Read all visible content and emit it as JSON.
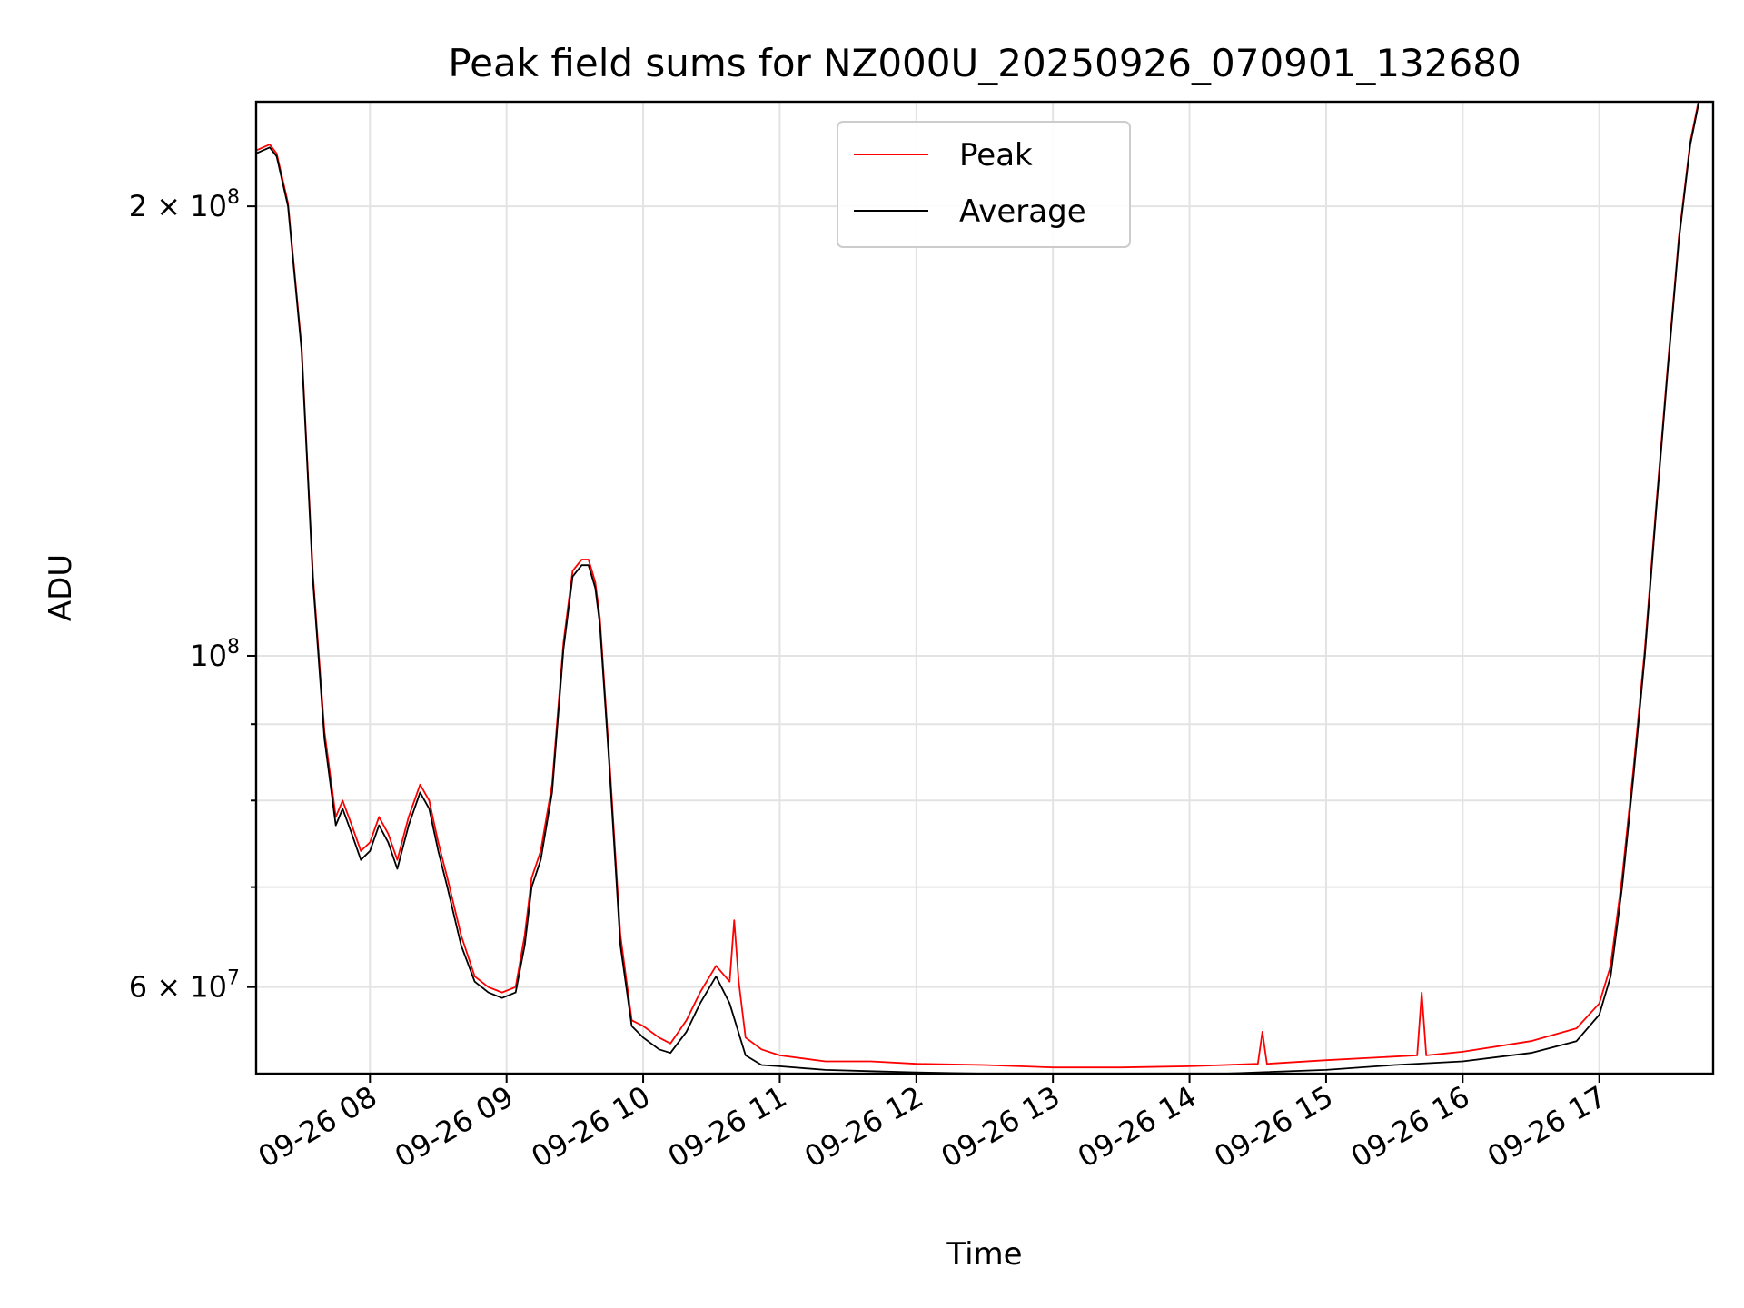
{
  "chart_data": {
    "type": "line",
    "title": "Peak field sums for NZ000U_20250926_070901_132680",
    "xlabel": "Time",
    "ylabel": "ADU",
    "yscale": "log",
    "grid": true,
    "legend_position": "top-center",
    "xlim": [
      "2025-09-26 07:10",
      "2025-09-26 17:50"
    ],
    "ylim": [
      52500000,
      235000000
    ],
    "x_ticks": [
      {
        "value": "2025-09-26 08:00",
        "label": "09-26 08"
      },
      {
        "value": "2025-09-26 09:00",
        "label": "09-26 09"
      },
      {
        "value": "2025-09-26 10:00",
        "label": "09-26 10"
      },
      {
        "value": "2025-09-26 11:00",
        "label": "09-26 11"
      },
      {
        "value": "2025-09-26 12:00",
        "label": "09-26 12"
      },
      {
        "value": "2025-09-26 13:00",
        "label": "09-26 13"
      },
      {
        "value": "2025-09-26 14:00",
        "label": "09-26 14"
      },
      {
        "value": "2025-09-26 15:00",
        "label": "09-26 15"
      },
      {
        "value": "2025-09-26 16:00",
        "label": "09-26 16"
      },
      {
        "value": "2025-09-26 17:00",
        "label": "09-26 17"
      }
    ],
    "y_major_ticks": [
      {
        "value": 60000000,
        "mantissa": "6",
        "base": "10",
        "exp": "7"
      },
      {
        "value": 100000000,
        "mantissa": "",
        "base": "10",
        "exp": "8"
      },
      {
        "value": 200000000,
        "mantissa": "2",
        "base": "10",
        "exp": "8"
      }
    ],
    "y_minor_ticks": [
      70000000,
      80000000,
      90000000
    ],
    "series": [
      {
        "name": "Average",
        "color": "#000000",
        "x": [
          "2025-09-26 07:10",
          "2025-09-26 07:13",
          "2025-09-26 07:16",
          "2025-09-26 07:19",
          "2025-09-26 07:24",
          "2025-09-26 07:30",
          "2025-09-26 07:35",
          "2025-09-26 07:40",
          "2025-09-26 07:45",
          "2025-09-26 07:48",
          "2025-09-26 07:52",
          "2025-09-26 07:56",
          "2025-09-26 08:00",
          "2025-09-26 08:04",
          "2025-09-26 08:08",
          "2025-09-26 08:12",
          "2025-09-26 08:17",
          "2025-09-26 08:22",
          "2025-09-26 08:26",
          "2025-09-26 08:30",
          "2025-09-26 08:34",
          "2025-09-26 08:40",
          "2025-09-26 08:46",
          "2025-09-26 08:52",
          "2025-09-26 08:58",
          "2025-09-26 09:04",
          "2025-09-26 09:08",
          "2025-09-26 09:11",
          "2025-09-26 09:15",
          "2025-09-26 09:20",
          "2025-09-26 09:25",
          "2025-09-26 09:29",
          "2025-09-26 09:33",
          "2025-09-26 09:36",
          "2025-09-26 09:39",
          "2025-09-26 09:41",
          "2025-09-26 09:45",
          "2025-09-26 09:50",
          "2025-09-26 09:55",
          "2025-09-26 10:00",
          "2025-09-26 10:07",
          "2025-09-26 10:12",
          "2025-09-26 10:19",
          "2025-09-26 10:25",
          "2025-09-26 10:32",
          "2025-09-26 10:38",
          "2025-09-26 10:45",
          "2025-09-26 10:52",
          "2025-09-26 11:00",
          "2025-09-26 11:20",
          "2025-09-26 11:40",
          "2025-09-26 12:00",
          "2025-09-26 12:30",
          "2025-09-26 13:00",
          "2025-09-26 13:30",
          "2025-09-26 14:00",
          "2025-09-26 14:30",
          "2025-09-26 15:00",
          "2025-09-26 15:30",
          "2025-09-26 16:00",
          "2025-09-26 16:30",
          "2025-09-26 16:50",
          "2025-09-26 17:00",
          "2025-09-26 17:05",
          "2025-09-26 17:10",
          "2025-09-26 17:15",
          "2025-09-26 17:20",
          "2025-09-26 17:25",
          "2025-09-26 17:30",
          "2025-09-26 17:35",
          "2025-09-26 17:40",
          "2025-09-26 17:45"
        ],
        "values": [
          217000000,
          218000000,
          219000000,
          216000000,
          200000000,
          160000000,
          112000000,
          88000000,
          77000000,
          79000000,
          76000000,
          73000000,
          74000000,
          77000000,
          75000000,
          72000000,
          77000000,
          81000000,
          79000000,
          74000000,
          70000000,
          64000000,
          60500000,
          59500000,
          59000000,
          59500000,
          64000000,
          70000000,
          73000000,
          81000000,
          101000000,
          113000000,
          115000000,
          115000000,
          111000000,
          105000000,
          85000000,
          64000000,
          56500000,
          55500000,
          54500000,
          54200000,
          56000000,
          58500000,
          61000000,
          58500000,
          54000000,
          53200000,
          53100000,
          52800000,
          52700000,
          52600000,
          52500000,
          52300000,
          52300000,
          52400000,
          52600000,
          52800000,
          53200000,
          53500000,
          54200000,
          55200000,
          57500000,
          61000000,
          70000000,
          83000000,
          100000000,
          125000000,
          155000000,
          190000000,
          220000000,
          240000000
        ]
      },
      {
        "name": "Peak",
        "color": "#ff0000",
        "x": [
          "2025-09-26 07:10",
          "2025-09-26 07:13",
          "2025-09-26 07:16",
          "2025-09-26 07:19",
          "2025-09-26 07:24",
          "2025-09-26 07:30",
          "2025-09-26 07:35",
          "2025-09-26 07:40",
          "2025-09-26 07:45",
          "2025-09-26 07:48",
          "2025-09-26 07:52",
          "2025-09-26 07:56",
          "2025-09-26 08:00",
          "2025-09-26 08:04",
          "2025-09-26 08:08",
          "2025-09-26 08:12",
          "2025-09-26 08:17",
          "2025-09-26 08:22",
          "2025-09-26 08:26",
          "2025-09-26 08:30",
          "2025-09-26 08:34",
          "2025-09-26 08:40",
          "2025-09-26 08:46",
          "2025-09-26 08:52",
          "2025-09-26 08:58",
          "2025-09-26 09:04",
          "2025-09-26 09:08",
          "2025-09-26 09:11",
          "2025-09-26 09:15",
          "2025-09-26 09:20",
          "2025-09-26 09:25",
          "2025-09-26 09:29",
          "2025-09-26 09:33",
          "2025-09-26 09:36",
          "2025-09-26 09:39",
          "2025-09-26 09:41",
          "2025-09-26 09:45",
          "2025-09-26 09:50",
          "2025-09-26 09:55",
          "2025-09-26 10:00",
          "2025-09-26 10:07",
          "2025-09-26 10:12",
          "2025-09-26 10:19",
          "2025-09-26 10:25",
          "2025-09-26 10:32",
          "2025-09-26 10:38",
          "2025-09-26 10:40",
          "2025-09-26 10:42",
          "2025-09-26 10:45",
          "2025-09-26 10:52",
          "2025-09-26 11:00",
          "2025-09-26 11:20",
          "2025-09-26 11:40",
          "2025-09-26 12:00",
          "2025-09-26 12:30",
          "2025-09-26 13:00",
          "2025-09-26 13:30",
          "2025-09-26 14:00",
          "2025-09-26 14:30",
          "2025-09-26 14:32",
          "2025-09-26 14:34",
          "2025-09-26 15:00",
          "2025-09-26 15:40",
          "2025-09-26 15:42",
          "2025-09-26 15:44",
          "2025-09-26 16:00",
          "2025-09-26 16:30",
          "2025-09-26 16:50",
          "2025-09-26 17:00",
          "2025-09-26 17:05",
          "2025-09-26 17:10",
          "2025-09-26 17:15",
          "2025-09-26 17:20",
          "2025-09-26 17:25",
          "2025-09-26 17:30",
          "2025-09-26 17:35",
          "2025-09-26 17:40",
          "2025-09-26 17:45"
        ],
        "values": [
          218000000,
          219000000,
          220000000,
          217000000,
          201000000,
          161000000,
          113000000,
          89000000,
          78000000,
          80000000,
          77000000,
          74000000,
          75000000,
          78000000,
          76000000,
          73000000,
          78000000,
          82000000,
          80000000,
          75000000,
          71000000,
          65000000,
          61000000,
          60000000,
          59500000,
          60000000,
          65000000,
          71000000,
          74000000,
          82000000,
          102000000,
          114000000,
          116000000,
          116000000,
          112000000,
          106000000,
          86000000,
          65000000,
          57000000,
          56500000,
          55500000,
          55000000,
          57000000,
          59500000,
          62000000,
          60500000,
          66500000,
          60500000,
          55500000,
          54500000,
          54000000,
          53500000,
          53500000,
          53300000,
          53200000,
          53000000,
          53000000,
          53100000,
          53300000,
          56000000,
          53300000,
          53600000,
          54000000,
          59500000,
          54000000,
          54300000,
          55200000,
          56300000,
          58500000,
          62000000,
          71000000,
          84000000,
          101000000,
          126000000,
          156000000,
          191000000,
          221000000,
          241000000
        ]
      }
    ]
  }
}
